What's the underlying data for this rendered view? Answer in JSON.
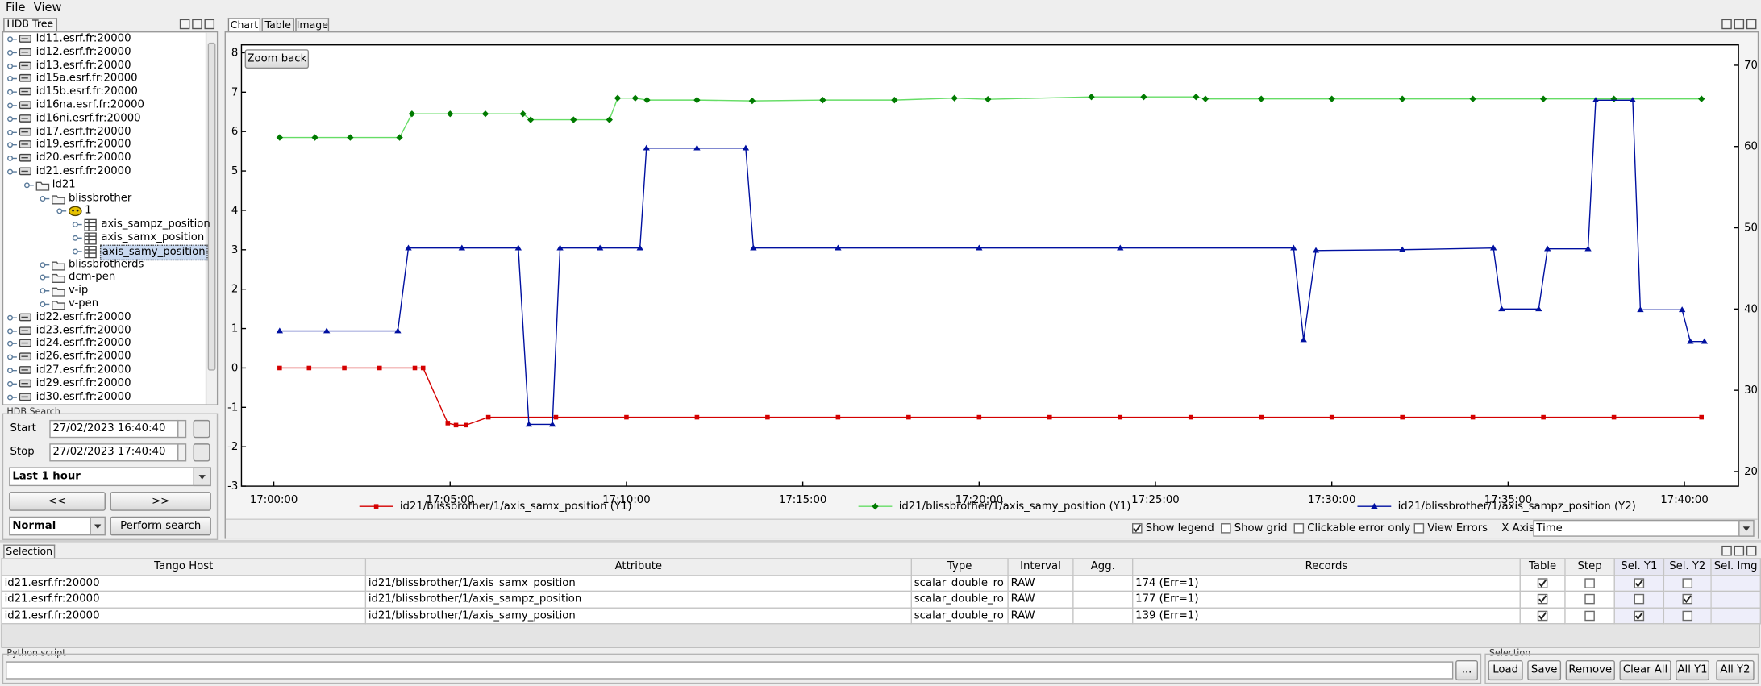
{
  "menu": [
    "File",
    "View"
  ],
  "tree": {
    "title": "HDB Tree",
    "items": [
      {
        "label": "id11.esrf.fr:20000",
        "icon": "server"
      },
      {
        "label": "id12.esrf.fr:20000",
        "icon": "server"
      },
      {
        "label": "id13.esrf.fr:20000",
        "icon": "server"
      },
      {
        "label": "id15a.esrf.fr:20000",
        "icon": "server"
      },
      {
        "label": "id15b.esrf.fr:20000",
        "icon": "server"
      },
      {
        "label": "id16na.esrf.fr:20000",
        "icon": "server"
      },
      {
        "label": "id16ni.esrf.fr:20000",
        "icon": "server"
      },
      {
        "label": "id17.esrf.fr:20000",
        "icon": "server"
      },
      {
        "label": "id19.esrf.fr:20000",
        "icon": "server"
      },
      {
        "label": "id20.esrf.fr:20000",
        "icon": "server"
      },
      {
        "label": "id21.esrf.fr:20000",
        "icon": "server",
        "children": [
          {
            "label": "id21",
            "icon": "folder",
            "children": [
              {
                "label": "blissbrother",
                "icon": "folder",
                "children": [
                  {
                    "label": "1",
                    "icon": "device",
                    "children": [
                      {
                        "label": "axis_sampz_position",
                        "icon": "attribute"
                      },
                      {
                        "label": "axis_samx_position",
                        "icon": "attribute"
                      },
                      {
                        "label": "axis_samy_position",
                        "icon": "attribute",
                        "selected": true
                      }
                    ]
                  }
                ]
              },
              {
                "label": "blissbrotherds",
                "icon": "folder"
              },
              {
                "label": "dcm-pen",
                "icon": "folder"
              },
              {
                "label": "v-ip",
                "icon": "folder"
              },
              {
                "label": "v-pen",
                "icon": "folder"
              }
            ]
          }
        ]
      },
      {
        "label": "id22.esrf.fr:20000",
        "icon": "server"
      },
      {
        "label": "id23.esrf.fr:20000",
        "icon": "server"
      },
      {
        "label": "id24.esrf.fr:20000",
        "icon": "server"
      },
      {
        "label": "id26.esrf.fr:20000",
        "icon": "server"
      },
      {
        "label": "id27.esrf.fr:20000",
        "icon": "server"
      },
      {
        "label": "id29.esrf.fr:20000",
        "icon": "server"
      },
      {
        "label": "id30.esrf.fr:20000",
        "icon": "server"
      }
    ]
  },
  "search": {
    "title": "HDB Search",
    "start_label": "Start",
    "start": "27/02/2023 16:40:40",
    "stop_label": "Stop",
    "stop": "27/02/2023 17:40:40",
    "range": "Last 1 hour",
    "previous": "<<",
    "next": ">>",
    "mode": "Normal",
    "search": "Perform search"
  },
  "tabs": [
    "Chart",
    "Table",
    "Image"
  ],
  "chart_controls": {
    "zoom": "Zoom back",
    "options": [
      {
        "label": "Show legend",
        "checked": true
      },
      {
        "label": "Show grid",
        "checked": false
      },
      {
        "label": "Clickable error only",
        "checked": false
      },
      {
        "label": "View Errors",
        "checked": false
      }
    ],
    "x_axis_label": "X Axis",
    "x_axis": "Time"
  },
  "chart_data": {
    "type": "line",
    "legend": true,
    "grid": false,
    "xlim": [
      "16:59:05",
      "17:41:32"
    ],
    "xticks": [
      "17:00:00",
      "17:05:00",
      "17:10:00",
      "17:15:00",
      "17:20:00",
      "17:25:00",
      "17:30:00",
      "17:35:00",
      "17:40:00"
    ],
    "ylim": [
      -3,
      8.2
    ],
    "yticks": [
      -3,
      -2,
      -1,
      0,
      1,
      2,
      3,
      4,
      5,
      6,
      7,
      8
    ],
    "y2lim": [
      18.2,
      72.5
    ],
    "y2ticks": [
      20,
      30,
      40,
      50,
      60,
      70
    ],
    "series": [
      {
        "name": "id21/blissbrother/1/axis_samx_position (Y1)",
        "color": "#d40000",
        "marker_color": "#d40000",
        "marker": "square",
        "x": [
          "17:00:10",
          "17:01:00",
          "17:02:00",
          "17:03:00",
          "17:04:00",
          "17:04:14",
          "17:04:56",
          "17:05:10",
          "17:05:27",
          "17:06:05",
          "17:08:00",
          "17:10:00",
          "17:12:00",
          "17:14:00",
          "17:16:00",
          "17:18:00",
          "17:20:00",
          "17:22:00",
          "17:24:00",
          "17:26:00",
          "17:28:00",
          "17:30:00",
          "17:32:00",
          "17:34:00",
          "17:36:00",
          "17:38:00",
          "17:40:29"
        ],
        "values": [
          0,
          0,
          0,
          0,
          0,
          0,
          -1.4,
          -1.45,
          -1.45,
          -1.25,
          -1.25,
          -1.25,
          -1.25,
          -1.25,
          -1.25,
          -1.25,
          -1.25,
          -1.25,
          -1.25,
          -1.25,
          -1.25,
          -1.25,
          -1.25,
          -1.25,
          -1.25,
          -1.25,
          -1.25
        ]
      },
      {
        "name": "id21/blissbrother/1/axis_samy_position (Y1)",
        "color": "#66dd66",
        "marker_color": "#007a00",
        "marker": "diamond",
        "x": [
          "17:00:10",
          "17:01:10",
          "17:02:10",
          "17:03:34",
          "17:03:55",
          "17:05:00",
          "17:06:00",
          "17:07:04",
          "17:07:17",
          "17:08:30",
          "17:09:31",
          "17:09:45",
          "17:10:15",
          "17:10:35",
          "17:12:00",
          "17:13:34",
          "17:15:34",
          "17:17:36",
          "17:19:18",
          "17:20:15",
          "17:23:11",
          "17:24:40",
          "17:26:09",
          "17:26:25",
          "17:28:00",
          "17:30:00",
          "17:32:00",
          "17:34:00",
          "17:36:00",
          "17:38:00",
          "17:40:29"
        ],
        "values": [
          5.85,
          5.85,
          5.85,
          5.85,
          6.45,
          6.45,
          6.45,
          6.45,
          6.3,
          6.3,
          6.3,
          6.85,
          6.85,
          6.8,
          6.8,
          6.78,
          6.8,
          6.8,
          6.85,
          6.82,
          6.88,
          6.88,
          6.88,
          6.83,
          6.83,
          6.83,
          6.83,
          6.83,
          6.83,
          6.83,
          6.83
        ]
      },
      {
        "name": "id21/blissbrother/1/axis_sampz_position (Y2)",
        "color": "#0010a0",
        "marker_color": "#0010a0",
        "marker": "triangle",
        "axis": "y2",
        "x": [
          "17:00:10",
          "17:01:30",
          "17:03:31",
          "17:03:49",
          "17:05:20",
          "17:06:56",
          "17:07:14",
          "17:07:54",
          "17:08:07",
          "17:09:15",
          "17:10:23",
          "17:10:34",
          "17:12:00",
          "17:13:23",
          "17:13:36",
          "17:16:00",
          "17:20:00",
          "17:24:00",
          "17:28:55",
          "17:29:12",
          "17:29:33",
          "17:32:00",
          "17:34:35",
          "17:34:49",
          "17:35:52",
          "17:36:07",
          "17:37:16",
          "17:37:29",
          "17:38:32",
          "17:38:45",
          "17:39:56",
          "17:40:10",
          "17:40:34"
        ],
        "values": [
          37.3,
          37.3,
          37.3,
          47.5,
          47.5,
          47.5,
          25.8,
          25.8,
          47.5,
          47.5,
          47.5,
          59.8,
          59.8,
          59.8,
          47.5,
          47.5,
          47.5,
          47.5,
          47.5,
          36.2,
          47.2,
          47.3,
          47.5,
          40.0,
          40.0,
          47.4,
          47.4,
          65.7,
          65.7,
          39.9,
          39.9,
          36.0,
          36.0
        ]
      }
    ]
  },
  "selection": {
    "title": "Selection",
    "columns": [
      "Tango Host",
      "Attribute",
      "Type",
      "Interval",
      "Agg.",
      "Records",
      "Table",
      "Step",
      "Sel. Y1",
      "Sel. Y2",
      "Sel. Img"
    ],
    "rows": [
      {
        "host": "id21.esrf.fr:20000",
        "attribute": "id21/blissbrother/1/axis_samx_position",
        "type": "scalar_double_ro",
        "interval": "RAW",
        "records": "174 (Err=1)",
        "table": true,
        "step": false,
        "sel_y1": true,
        "sel_y2": false
      },
      {
        "host": "id21.esrf.fr:20000",
        "attribute": "id21/blissbrother/1/axis_sampz_position",
        "type": "scalar_double_ro",
        "interval": "RAW",
        "records": "177 (Err=1)",
        "table": true,
        "step": false,
        "sel_y1": false,
        "sel_y2": true
      },
      {
        "host": "id21.esrf.fr:20000",
        "attribute": "id21/blissbrother/1/axis_samy_position",
        "type": "scalar_double_ro",
        "interval": "RAW",
        "records": "139 (Err=1)",
        "table": true,
        "step": false,
        "sel_y1": true,
        "sel_y2": false
      }
    ]
  },
  "python": {
    "title": "Python script",
    "browse": "..."
  },
  "selection_actions": {
    "title": "Selection",
    "buttons": [
      "Load",
      "Save",
      "Remove",
      "Clear All",
      "All Y1",
      "All Y2"
    ]
  }
}
